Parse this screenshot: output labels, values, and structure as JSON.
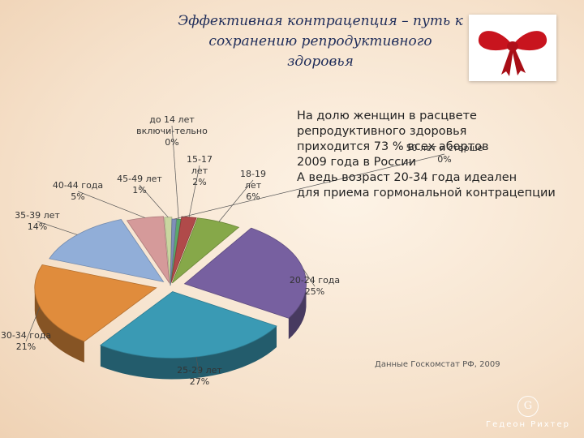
{
  "slide": {
    "title_lines": [
      "Эффективная контрацепция – путь к",
      "сохранению репродуктивного",
      "здоровья"
    ],
    "info_lines": [
      "На долю женщин в расцвете",
      "репродуктивного здоровья",
      "приходится 73 % всех абортов",
      "2009 года в России",
      "А ведь возраст 20-34 года идеален",
      "для приема гормональной контрацепции"
    ],
    "source": "Данные Госкомстат РФ, 2009",
    "logo_mark": "G",
    "logo_text": "Гедеон Рихтер"
  },
  "chart_data": {
    "type": "pie",
    "title": "",
    "slices": [
      {
        "label": "до 14 лет включи-тельно",
        "label_lines": [
          "до 14 лет",
          "включи-тельно",
          "0%"
        ],
        "value": 0,
        "color": "#5aa86a"
      },
      {
        "label": "15-17 лет",
        "label_lines": [
          "15-17",
          "лет",
          "2%"
        ],
        "value": 2,
        "color": "#b04a4a"
      },
      {
        "label": "18-19 лет",
        "label_lines": [
          "18-19",
          "лет",
          "6%"
        ],
        "value": 6,
        "color": "#86a849"
      },
      {
        "label": "20-24 года",
        "label_lines": [
          "20-24 года",
          "25%"
        ],
        "value": 25,
        "color": "#7760a0"
      },
      {
        "label": "25-29 лет",
        "label_lines": [
          "25-29 лет",
          "27%"
        ],
        "value": 27,
        "color": "#3a9ab4"
      },
      {
        "label": "30-34 года",
        "label_lines": [
          "30-34 года",
          "21%"
        ],
        "value": 21,
        "color": "#e08c3c"
      },
      {
        "label": "35-39 лет",
        "label_lines": [
          "35-39 лет",
          "14%"
        ],
        "value": 14,
        "color": "#91aed8"
      },
      {
        "label": "40-44 года",
        "label_lines": [
          "40-44 года",
          "5%"
        ],
        "value": 5,
        "color": "#d59a9a"
      },
      {
        "label": "45-49 лет",
        "label_lines": [
          "45-49 лет",
          "1%"
        ],
        "value": 1,
        "color": "#c9d6a0"
      },
      {
        "label": "50 лет и старше",
        "label_lines": [
          "50 лет и старше",
          "0%"
        ],
        "value": 0,
        "color": "#7f8fb8"
      }
    ]
  }
}
